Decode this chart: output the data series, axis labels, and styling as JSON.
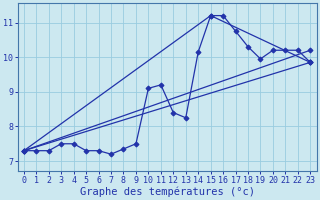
{
  "xlabel": "Graphe des températures (°c)",
  "ylabel": "",
  "bg_color": "#cce8f0",
  "grid_color": "#99cce0",
  "line_color": "#2233aa",
  "xlim": [
    -0.5,
    23.5
  ],
  "ylim": [
    6.7,
    11.55
  ],
  "yticks": [
    7,
    8,
    9,
    10,
    11
  ],
  "xticks": [
    0,
    1,
    2,
    3,
    4,
    5,
    6,
    7,
    8,
    9,
    10,
    11,
    12,
    13,
    14,
    15,
    16,
    17,
    18,
    19,
    20,
    21,
    22,
    23
  ],
  "line1_x": [
    0,
    1,
    2,
    3,
    4,
    5,
    6,
    7,
    8,
    9,
    10,
    11,
    12,
    13,
    14,
    15,
    16,
    17,
    18,
    19,
    20,
    21,
    22,
    23
  ],
  "line1_y": [
    7.3,
    7.3,
    7.3,
    7.5,
    7.5,
    7.3,
    7.3,
    7.2,
    7.35,
    7.5,
    9.1,
    9.2,
    8.4,
    8.25,
    10.15,
    11.2,
    11.2,
    10.75,
    10.3,
    9.95,
    10.2,
    10.2,
    10.2,
    9.85
  ],
  "line2_x": [
    0,
    23
  ],
  "line2_y": [
    7.3,
    9.85
  ],
  "line3_x": [
    0,
    23
  ],
  "line3_y": [
    7.3,
    10.2
  ],
  "line4_x": [
    0,
    15,
    23
  ],
  "line4_y": [
    7.3,
    11.2,
    9.85
  ],
  "tick_fontsize": 6,
  "label_fontsize": 7.5
}
